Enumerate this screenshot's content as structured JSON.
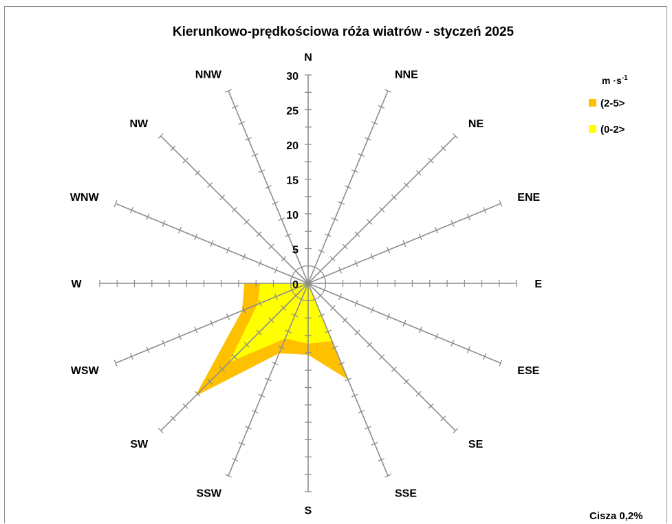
{
  "chart_data": {
    "type": "radar",
    "title": "Kierunkowo-prędkościowa róża wiatrów - styczeń 2025",
    "directions": [
      "N",
      "NNE",
      "NE",
      "ENE",
      "E",
      "ESE",
      "SE",
      "SSE",
      "S",
      "SSW",
      "SW",
      "WSW",
      "W",
      "WNW",
      "NW",
      "NNW"
    ],
    "radial_ticks": [
      "0",
      "5",
      "10",
      "15",
      "20",
      "25",
      "30"
    ],
    "rmax": 30,
    "legend_title": "m ·s",
    "legend_title_sup": "-1",
    "series": [
      {
        "name": "(2-5>",
        "color": "#ffc000",
        "values": [
          0.0,
          0.0,
          0.0,
          0.0,
          0.0,
          0.0,
          0.0,
          15.0,
          10.3,
          10.9,
          23.0,
          10.3,
          9.2,
          0.0,
          0.0,
          0.0
        ]
      },
      {
        "name": "(0-2>",
        "color": "#ffff00",
        "values": [
          0.0,
          0.0,
          0.0,
          0.0,
          0.0,
          0.0,
          0.0,
          9.0,
          8.7,
          8.6,
          16.1,
          7.9,
          6.9,
          0.0,
          0.0,
          0.0
        ]
      }
    ],
    "note": "Cisza 0,2%",
    "grid": true,
    "legend_position": "top-right"
  }
}
